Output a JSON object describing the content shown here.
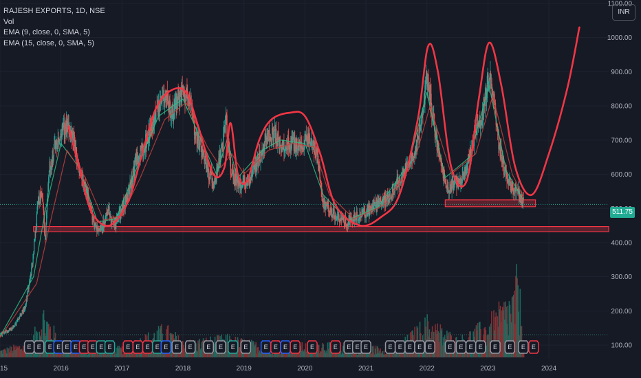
{
  "header": {
    "symbol_line": "RAJESH EXPORTS, 1D, NSE",
    "indicator_vol": "Vol",
    "indicator_ema9": "EMA (9, close, 0, SMA, 5)",
    "indicator_ema15": "EMA (15, close, 0, SMA, 5)"
  },
  "currency_button": "INR",
  "last_price_label": "511.75",
  "colors": {
    "background": "#161a25",
    "up": "#26a69a",
    "down": "#ef5350",
    "drawing": "#f23645",
    "grid": "#1f2330"
  },
  "chart_data": {
    "type": "candlestick",
    "y_axis": {
      "ticks": [
        1100,
        1000,
        900,
        800,
        700,
        600,
        500,
        400,
        300,
        200,
        100
      ],
      "tick_labels": [
        "1100.00",
        "1000.00",
        "900.00",
        "800.00",
        "700.00",
        "600.00",
        "500.00",
        "400.00",
        "300.00",
        "200.00",
        "100.00"
      ],
      "range": [
        60,
        1110
      ]
    },
    "x_axis": {
      "ticks": [
        2015,
        2016,
        2017,
        2018,
        2019,
        2020,
        2021,
        2022,
        2023,
        2024
      ],
      "tick_labels": [
        "2015",
        "2016",
        "2017",
        "2018",
        "2019",
        "2020",
        "2021",
        "2022",
        "2023",
        "2024"
      ],
      "range": [
        2015.0,
        2024.98
      ]
    },
    "price_path": [
      [
        2015.0,
        130
      ],
      [
        2015.2,
        150
      ],
      [
        2015.4,
        210
      ],
      [
        2015.52,
        330
      ],
      [
        2015.62,
        520
      ],
      [
        2015.68,
        560
      ],
      [
        2015.73,
        400
      ],
      [
        2015.8,
        620
      ],
      [
        2015.9,
        680
      ],
      [
        2016.0,
        720
      ],
      [
        2016.12,
        740
      ],
      [
        2016.2,
        700
      ],
      [
        2016.32,
        600
      ],
      [
        2016.45,
        520
      ],
      [
        2016.55,
        445
      ],
      [
        2016.68,
        450
      ],
      [
        2016.78,
        490
      ],
      [
        2016.88,
        450
      ],
      [
        2017.0,
        500
      ],
      [
        2017.1,
        540
      ],
      [
        2017.22,
        640
      ],
      [
        2017.35,
        680
      ],
      [
        2017.48,
        740
      ],
      [
        2017.6,
        790
      ],
      [
        2017.72,
        840
      ],
      [
        2017.8,
        770
      ],
      [
        2017.9,
        810
      ],
      [
        2018.0,
        840
      ],
      [
        2018.12,
        810
      ],
      [
        2018.18,
        720
      ],
      [
        2018.28,
        680
      ],
      [
        2018.4,
        610
      ],
      [
        2018.5,
        570
      ],
      [
        2018.62,
        660
      ],
      [
        2018.7,
        760
      ],
      [
        2018.78,
        600
      ],
      [
        2018.9,
        570
      ],
      [
        2019.0,
        580
      ],
      [
        2019.12,
        590
      ],
      [
        2019.22,
        640
      ],
      [
        2019.35,
        700
      ],
      [
        2019.5,
        720
      ],
      [
        2019.62,
        680
      ],
      [
        2019.75,
        690
      ],
      [
        2019.88,
        680
      ],
      [
        2020.0,
        700
      ],
      [
        2020.1,
        690
      ],
      [
        2020.2,
        650
      ],
      [
        2020.28,
        520
      ],
      [
        2020.38,
        500
      ],
      [
        2020.5,
        480
      ],
      [
        2020.62,
        460
      ],
      [
        2020.75,
        465
      ],
      [
        2020.9,
        480
      ],
      [
        2021.0,
        490
      ],
      [
        2021.15,
        510
      ],
      [
        2021.3,
        520
      ],
      [
        2021.45,
        560
      ],
      [
        2021.6,
        600
      ],
      [
        2021.75,
        650
      ],
      [
        2021.85,
        700
      ],
      [
        2021.92,
        800
      ],
      [
        2022.0,
        880
      ],
      [
        2022.06,
        810
      ],
      [
        2022.15,
        700
      ],
      [
        2022.25,
        600
      ],
      [
        2022.35,
        560
      ],
      [
        2022.48,
        580
      ],
      [
        2022.6,
        600
      ],
      [
        2022.7,
        660
      ],
      [
        2022.8,
        730
      ],
      [
        2022.88,
        740
      ],
      [
        2022.95,
        830
      ],
      [
        2023.02,
        890
      ],
      [
        2023.1,
        800
      ],
      [
        2023.18,
        680
      ],
      [
        2023.28,
        600
      ],
      [
        2023.4,
        560
      ],
      [
        2023.5,
        540
      ],
      [
        2023.58,
        511.75
      ]
    ],
    "volume_scale_max": 340,
    "volume_path": [
      [
        2015.0,
        30
      ],
      [
        2015.5,
        60
      ],
      [
        2015.7,
        190
      ],
      [
        2016.0,
        50
      ],
      [
        2016.5,
        30
      ],
      [
        2017.0,
        40
      ],
      [
        2017.7,
        120
      ],
      [
        2018.0,
        60
      ],
      [
        2018.7,
        80
      ],
      [
        2019.5,
        40
      ],
      [
        2020.3,
        60
      ],
      [
        2020.5,
        40
      ],
      [
        2021.5,
        40
      ],
      [
        2022.0,
        150
      ],
      [
        2022.5,
        70
      ],
      [
        2023.0,
        140
      ],
      [
        2023.42,
        250
      ],
      [
        2023.48,
        340
      ],
      [
        2023.55,
        160
      ],
      [
        2023.6,
        60
      ]
    ],
    "ema_fast": [
      [
        2015.0,
        125
      ],
      [
        2015.55,
        300
      ],
      [
        2015.75,
        500
      ],
      [
        2016.0,
        690
      ],
      [
        2016.3,
        620
      ],
      [
        2016.6,
        460
      ],
      [
        2016.9,
        470
      ],
      [
        2017.2,
        600
      ],
      [
        2017.6,
        770
      ],
      [
        2018.0,
        820
      ],
      [
        2018.3,
        700
      ],
      [
        2018.55,
        600
      ],
      [
        2018.72,
        700
      ],
      [
        2018.9,
        590
      ],
      [
        2019.3,
        670
      ],
      [
        2019.6,
        700
      ],
      [
        2020.0,
        690
      ],
      [
        2020.3,
        540
      ],
      [
        2020.7,
        465
      ],
      [
        2021.2,
        505
      ],
      [
        2021.7,
        630
      ],
      [
        2022.0,
        840
      ],
      [
        2022.3,
        590
      ],
      [
        2022.7,
        650
      ],
      [
        2023.02,
        860
      ],
      [
        2023.3,
        610
      ],
      [
        2023.58,
        525
      ]
    ],
    "ema_slow": [
      [
        2015.0,
        122
      ],
      [
        2015.6,
        280
      ],
      [
        2015.85,
        480
      ],
      [
        2016.1,
        670
      ],
      [
        2016.4,
        590
      ],
      [
        2016.7,
        465
      ],
      [
        2017.0,
        480
      ],
      [
        2017.3,
        590
      ],
      [
        2017.7,
        760
      ],
      [
        2018.05,
        810
      ],
      [
        2018.4,
        680
      ],
      [
        2018.62,
        620
      ],
      [
        2018.8,
        660
      ],
      [
        2019.0,
        600
      ],
      [
        2019.4,
        670
      ],
      [
        2019.8,
        690
      ],
      [
        2020.15,
        680
      ],
      [
        2020.4,
        540
      ],
      [
        2020.8,
        470
      ],
      [
        2021.3,
        510
      ],
      [
        2021.8,
        640
      ],
      [
        2022.05,
        800
      ],
      [
        2022.4,
        600
      ],
      [
        2022.8,
        660
      ],
      [
        2023.08,
        830
      ],
      [
        2023.4,
        600
      ],
      [
        2023.58,
        535
      ]
    ],
    "drawings": {
      "support_zone_wide": {
        "x": [
          2015.55,
          2024.98
        ],
        "y": [
          432,
          447
        ]
      },
      "support_zone_recent": {
        "x": [
          2022.3,
          2023.78
        ],
        "y": [
          505,
          525
        ]
      },
      "projection_curve": [
        [
          2016.12,
          740
        ],
        [
          2016.3,
          620
        ],
        [
          2016.5,
          490
        ],
        [
          2016.8,
          450
        ],
        [
          2017.1,
          520
        ],
        [
          2017.3,
          640
        ],
        [
          2017.55,
          790
        ],
        [
          2017.8,
          845
        ],
        [
          2018.05,
          840
        ],
        [
          2018.25,
          740
        ],
        [
          2018.5,
          600
        ],
        [
          2018.68,
          620
        ],
        [
          2018.78,
          750
        ],
        [
          2018.9,
          600
        ],
        [
          2019.05,
          580
        ],
        [
          2019.25,
          700
        ],
        [
          2019.45,
          760
        ],
        [
          2019.75,
          780
        ],
        [
          2020.0,
          770
        ],
        [
          2020.25,
          660
        ],
        [
          2020.5,
          510
        ],
        [
          2020.9,
          450
        ],
        [
          2021.25,
          475
        ],
        [
          2021.55,
          540
        ],
        [
          2021.85,
          760
        ],
        [
          2022.02,
          975
        ],
        [
          2022.18,
          900
        ],
        [
          2022.4,
          620
        ],
        [
          2022.65,
          580
        ],
        [
          2022.85,
          820
        ],
        [
          2023.02,
          985
        ],
        [
          2023.22,
          860
        ],
        [
          2023.45,
          620
        ],
        [
          2023.72,
          540
        ],
        [
          2024.0,
          660
        ],
        [
          2024.3,
          850
        ],
        [
          2024.5,
          1030
        ]
      ]
    },
    "events": [
      {
        "x": 2015.48,
        "t": "E",
        "c": "g"
      },
      {
        "x": 2015.64,
        "t": "E",
        "c": "g"
      },
      {
        "x": 2015.82,
        "t": "E",
        "c": "t"
      },
      {
        "x": 2015.96,
        "t": "E",
        "c": "b"
      },
      {
        "x": 2016.1,
        "t": "E",
        "c": "g"
      },
      {
        "x": 2016.24,
        "t": "E",
        "c": "b"
      },
      {
        "x": 2016.38,
        "t": "E",
        "c": "r"
      },
      {
        "x": 2016.52,
        "t": "E",
        "c": "r"
      },
      {
        "x": 2016.66,
        "t": "E",
        "c": "t"
      },
      {
        "x": 2016.8,
        "t": "E",
        "c": "t"
      },
      {
        "x": 2017.1,
        "t": "E",
        "c": "r"
      },
      {
        "x": 2017.26,
        "t": "E",
        "c": "r"
      },
      {
        "x": 2017.42,
        "t": "E",
        "c": "r"
      },
      {
        "x": 2017.58,
        "t": "E",
        "c": "t"
      },
      {
        "x": 2017.72,
        "t": "E",
        "c": "b"
      },
      {
        "x": 2017.9,
        "t": "E",
        "c": "g"
      },
      {
        "x": 2018.12,
        "t": "E",
        "c": "g"
      },
      {
        "x": 2018.42,
        "t": "E",
        "c": "g"
      },
      {
        "x": 2018.62,
        "t": "E",
        "c": "g"
      },
      {
        "x": 2018.82,
        "t": "E",
        "c": "t"
      },
      {
        "x": 2019.03,
        "t": "E",
        "c": "g"
      },
      {
        "x": 2019.36,
        "t": "E",
        "c": "b"
      },
      {
        "x": 2019.52,
        "t": "E",
        "c": "r"
      },
      {
        "x": 2019.68,
        "t": "E",
        "c": "b"
      },
      {
        "x": 2019.84,
        "t": "E",
        "c": "r"
      },
      {
        "x": 2020.12,
        "t": "E",
        "c": "r"
      },
      {
        "x": 2020.5,
        "t": "E",
        "c": "r"
      },
      {
        "x": 2020.72,
        "t": "E",
        "c": "g"
      },
      {
        "x": 2020.86,
        "t": "E",
        "c": "g"
      },
      {
        "x": 2021.0,
        "t": "E",
        "c": "g"
      },
      {
        "x": 2021.4,
        "t": "E",
        "c": "g"
      },
      {
        "x": 2021.56,
        "t": "E",
        "c": "g"
      },
      {
        "x": 2021.72,
        "t": "E",
        "c": "g"
      },
      {
        "x": 2021.88,
        "t": "E",
        "c": "g"
      },
      {
        "x": 2022.05,
        "t": "E",
        "c": "g"
      },
      {
        "x": 2022.38,
        "t": "E",
        "c": "g"
      },
      {
        "x": 2022.56,
        "t": "E",
        "c": "g"
      },
      {
        "x": 2022.72,
        "t": "E",
        "c": "g"
      },
      {
        "x": 2022.88,
        "t": "E",
        "c": "g"
      },
      {
        "x": 2023.12,
        "t": "E",
        "c": "g"
      },
      {
        "x": 2023.36,
        "t": "E",
        "c": "g"
      },
      {
        "x": 2023.58,
        "t": "E",
        "c": "g"
      },
      {
        "x": 2023.75,
        "t": "E",
        "c": "r"
      }
    ],
    "grid": true,
    "legend_position": "top-left"
  }
}
